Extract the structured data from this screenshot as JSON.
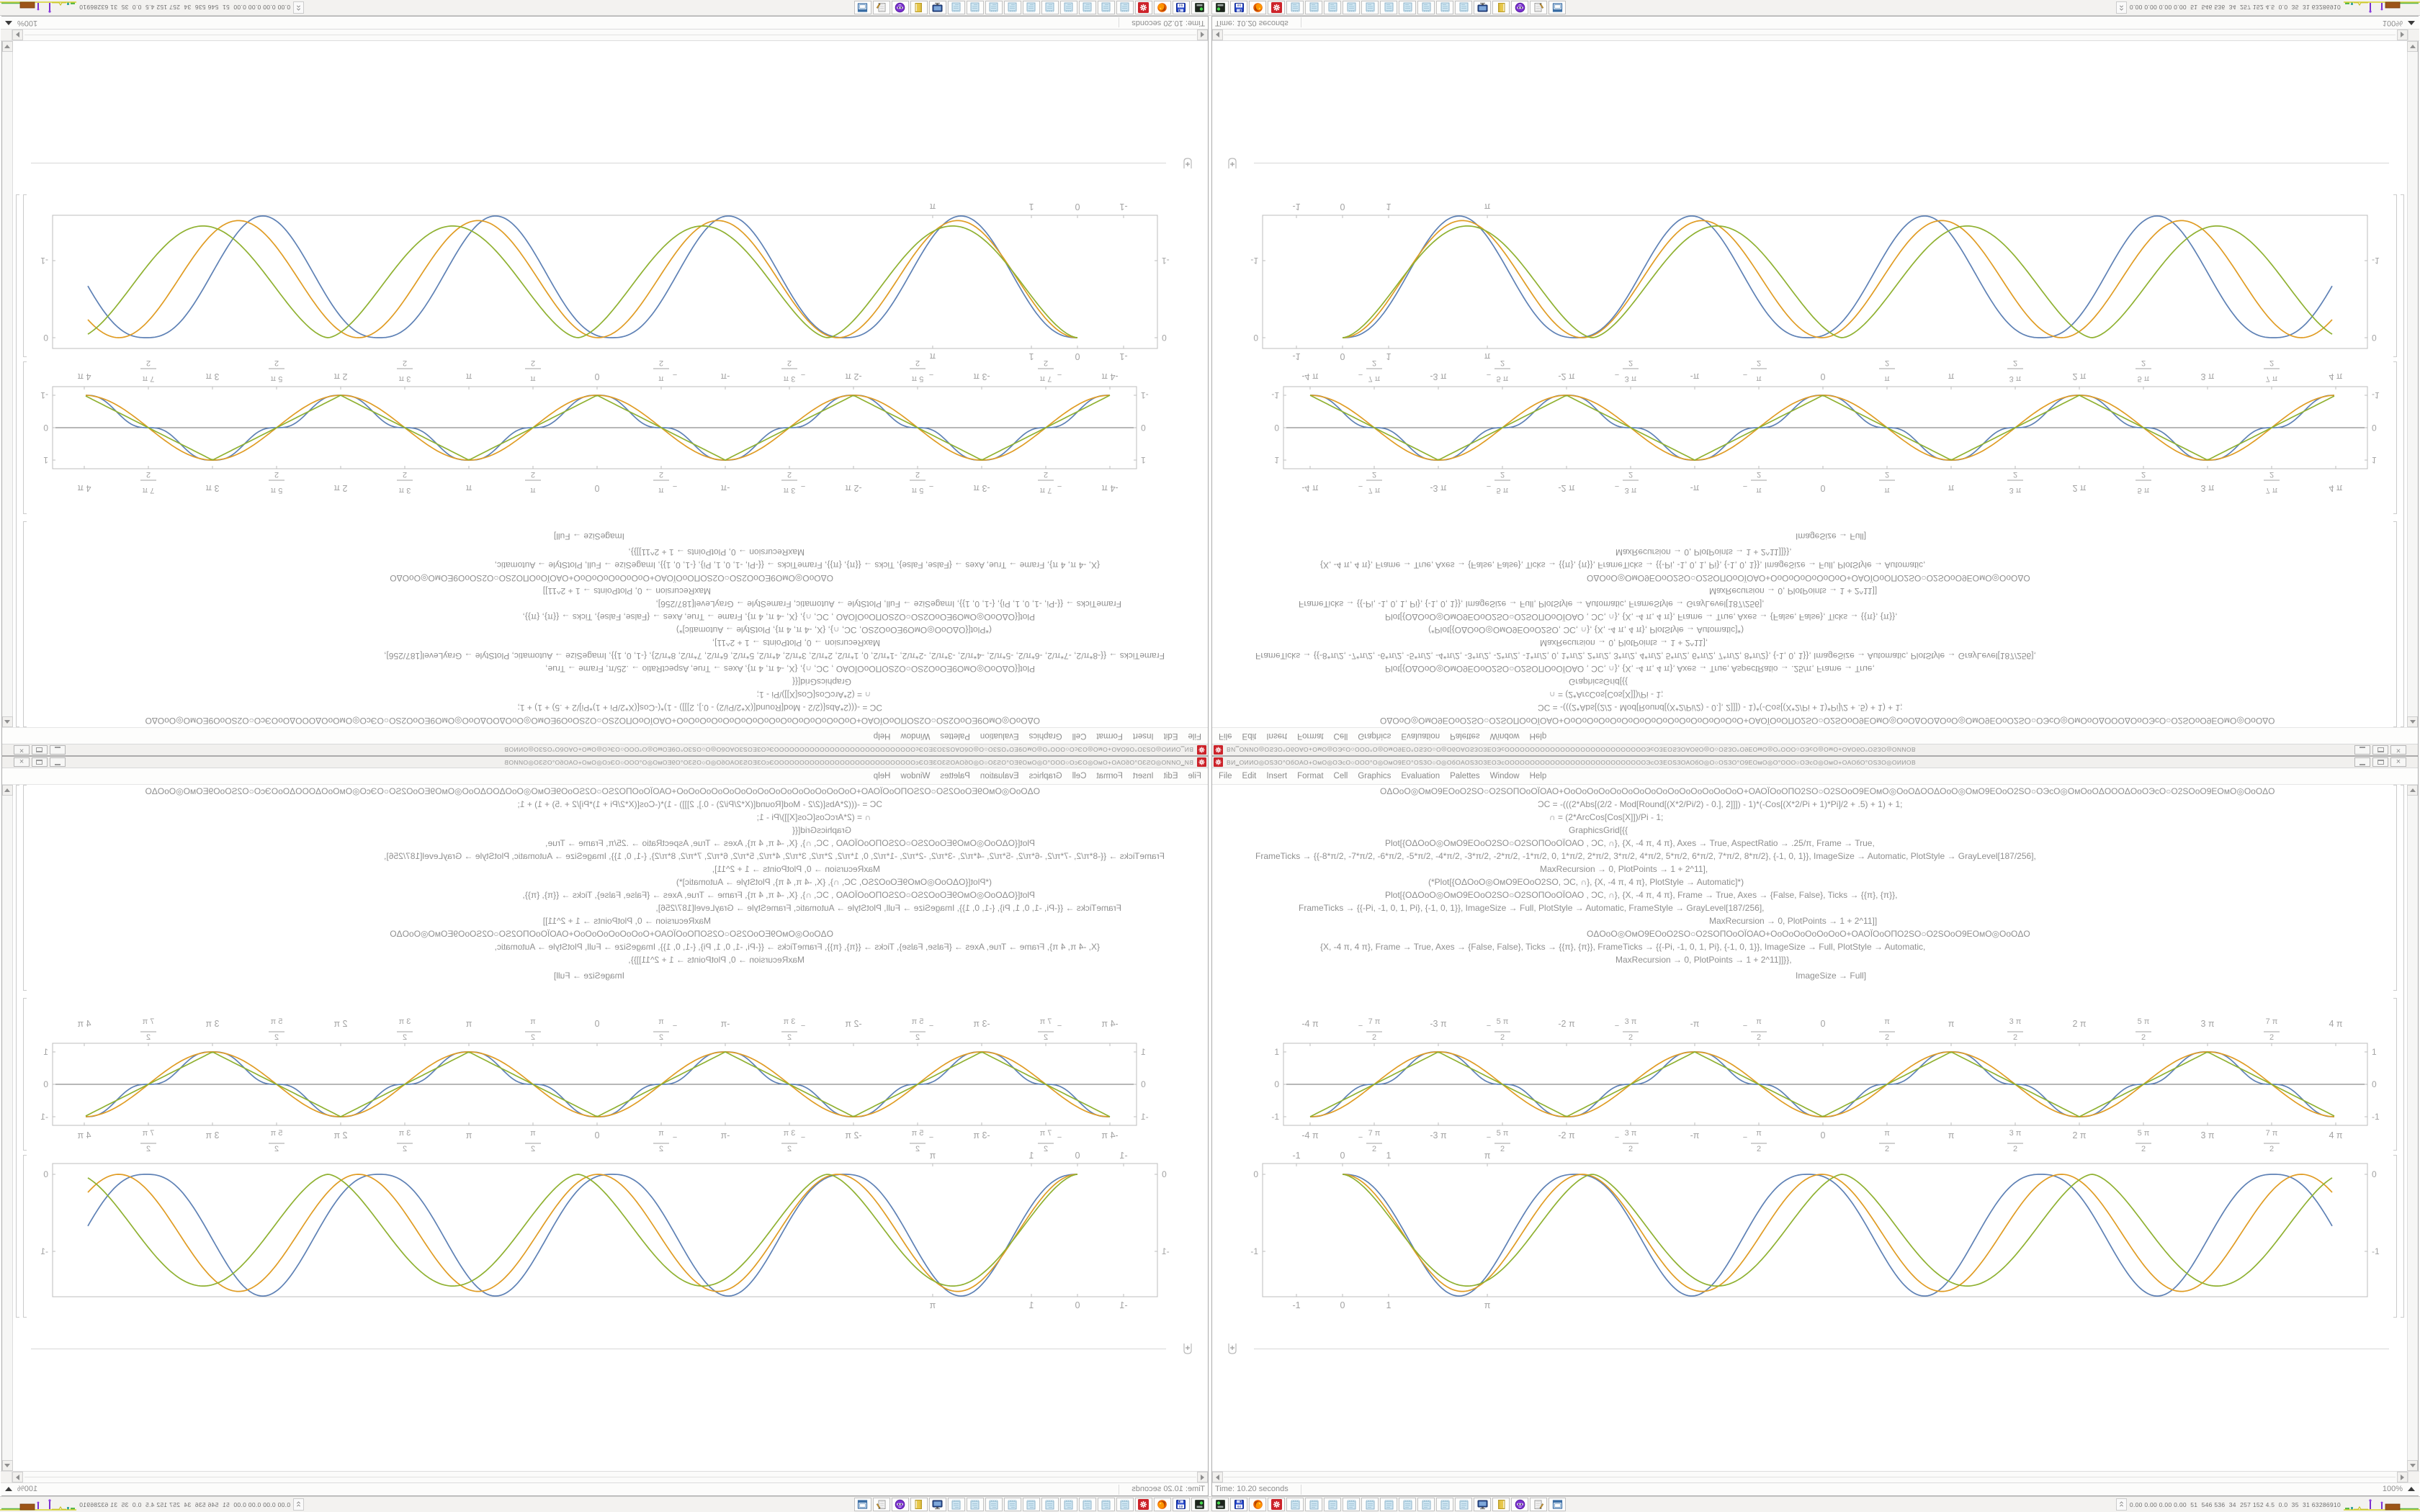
{
  "colors": {
    "curve_blue": "#5e81b5",
    "curve_orange": "#e09c24",
    "curve_green": "#8fb131",
    "frame_gray": "#bdbdbd",
    "axis_gray": "#6f6f6f",
    "tick_text": "#a2a2a2",
    "code_text": "#8f8f8f",
    "app_red": "#cc2229"
  },
  "window": {
    "title_glyphs": "ВИ‗ОИИО◎ОЅЗО°ОбОАО+ОмО◎ОЭсО○ООО°О◎ОмО9ЕО°ОЅЗО○О◎ОбОАОЅЗОЗЕОЭсООООООООООООООООООООООООООООЭсОЗЕОЅЗОАОбО◎О○ОЅЗО°О9ЕОмО◎О°ООО○ОЭсО◎ОмО+ОАОбО°ОЅЗО◎ОИИОВ",
    "menu": [
      "File",
      "Edit",
      "Insert",
      "Format",
      "Cell",
      "Graphics",
      "Evaluation",
      "Palettes",
      "Window",
      "Help"
    ],
    "controls": {
      "minimize": "minimize",
      "maximize": "maximize",
      "close": "close"
    },
    "status_time": "Time: 10.20 seconds",
    "magnification": "100%"
  },
  "code_lines": [
    {
      "x": 233,
      "y": 2,
      "t": "ОΔОоО◎ОмО9ЕОоО2ЅО○О2ЅОПОоОЇОАО+ОоОоОоОоОоОоОоОоОоОоОоОоОоОоОоО+ОАОЇОоОПО2ЅО○О2ЅОоО9ЕОмО◎ОоОΔООΔОоО◎ОмО9ЕОоО2ЅО○ОЭсО◎ОмОоОΔОООΔОоОЭсО○О2ЅОоО9ЕОмО◎ОоОΔО"
    },
    {
      "x": 452,
      "y": 20,
      "t": "ƆC = -(((2*Abs[(2/2 - Mod[Round[(X*2/Pi/2) - 0.], 2]]]) - 1)*(-Cos[(X*2/Pi + 1)*Pi]/2 + .5) + 1) + 1;"
    },
    {
      "x": 468,
      "y": 38,
      "t": "∩ = (2*ArcCos[Cos[X]])/Pi - 1;"
    },
    {
      "x": 495,
      "y": 56,
      "t": "GraphicsGrid[{{"
    },
    {
      "x": 240,
      "y": 74,
      "t": "Plot[{ОΔОоО◎ОмО9ЕОоО2ЅО○О2ЅОПОоОЇОАО , ƆC, ∩}, {X, -4 π, 4 π}, Axes → True, AspectRatio → .25/π, Frame → True,"
    },
    {
      "x": 60,
      "y": 92,
      "t": "FrameTicks → {{-8*π/2, -7*π/2, -6*π/2, -5*π/2, -4*π/2, -3*π/2, -2*π/2, -1*π/2, 0, 1*π/2, 2*π/2, 3*π/2, 4*π/2, 5*π/2, 6*π/2, 7*π/2, 8*π/2}, {-1, 0, 1}}, ImageSize → Automatic, PlotStyle → GrayLevel[187/256],"
    },
    {
      "x": 455,
      "y": 110,
      "t": "MaxRecursion → 0, PlotPoints → 1 + 2^11],"
    },
    {
      "x": 300,
      "y": 128,
      "t": "(*Plot[{ОΔОоО◎ОмО9ЕОоО2ЅО, ƆC, ∩}, {X, -4 π, 4 π}, PlotStyle → Automatic]*)"
    },
    {
      "x": 240,
      "y": 146,
      "t": "Plot[{ОΔОоО◎ОмО9ЕОоО2ЅО○О2ЅОПОоОЇОАО , ƆC, ∩}, {X, -4 π, 4 π}, Frame → True, Axes → {False, False}, Ticks → {{π}, {π}},"
    },
    {
      "x": 120,
      "y": 164,
      "t": "FrameTicks → {{-Pi, -1, 0, 1, Pi}, {-1, 0, 1}}, ImageSize → Full, PlotStyle → Automatic, FrameStyle → GrayLevel[187/256],"
    },
    {
      "x": 690,
      "y": 182,
      "t": "MaxRecursion → 0, PlotPoints → 1 + 2^11]]"
    },
    {
      "x": 520,
      "y": 200,
      "t": "ОΔОоО◎ОмО9ЕОоО2ЅО○О2ЅОПОоОЇОАО+ОоОоОоОоОоОоО+ОАОЇОоОПО2ЅО○О2ЅОоО9ЕОмО◎ОоОΔО"
    },
    {
      "x": 150,
      "y": 218,
      "t": "{X, -4 π, 4 π}, Frame → True, Axes → {False, False}, Ticks → {{π}, {π}}, FrameTicks → {{-Pi, -1, 0, 1, Pi}, {-1, 0, 1}}, ImageSize → Full, PlotStyle → Automatic,"
    },
    {
      "x": 560,
      "y": 236,
      "t": "MaxRecursion → 0, PlotPoints → 1 + 2^11]]}},"
    },
    {
      "x": 810,
      "y": 258,
      "t": "ImageSize → Full]"
    }
  ],
  "chart_data": [
    {
      "type": "line",
      "title": "",
      "xlabel": "",
      "ylabel": "",
      "x_unit": "pi_over_2_ticks",
      "xlim_pi": [
        -4.21,
        4.25
      ],
      "ylim": [
        -1.27,
        1.27
      ],
      "y_ticks": [
        {
          "v": 1,
          "label": "1"
        },
        {
          "v": 0,
          "label": "0"
        },
        {
          "v": -1,
          "label": "-1"
        }
      ],
      "x_ticks": [
        {
          "h": -8,
          "frac": false,
          "label": "-4 π"
        },
        {
          "h": -7,
          "frac": true,
          "neg": true,
          "num": "7 π",
          "den": "2"
        },
        {
          "h": -6,
          "frac": false,
          "label": "-3 π"
        },
        {
          "h": -5,
          "frac": true,
          "neg": true,
          "num": "5 π",
          "den": "2"
        },
        {
          "h": -4,
          "frac": false,
          "label": "-2 π"
        },
        {
          "h": -3,
          "frac": true,
          "neg": true,
          "num": "3 π",
          "den": "2"
        },
        {
          "h": -2,
          "frac": false,
          "label": "-π"
        },
        {
          "h": -1,
          "frac": true,
          "neg": true,
          "num": "π",
          "den": "2"
        },
        {
          "h": 0,
          "frac": false,
          "label": "0"
        },
        {
          "h": 1,
          "frac": true,
          "neg": false,
          "num": "π",
          "den": "2"
        },
        {
          "h": 2,
          "frac": false,
          "label": "π"
        },
        {
          "h": 3,
          "frac": true,
          "neg": false,
          "num": "3 π",
          "den": "2"
        },
        {
          "h": 4,
          "frac": false,
          "label": "2 π"
        },
        {
          "h": 5,
          "frac": true,
          "neg": false,
          "num": "5 π",
          "den": "2"
        },
        {
          "h": 6,
          "frac": false,
          "label": "3 π"
        },
        {
          "h": 7,
          "frac": true,
          "neg": false,
          "num": "7 π",
          "den": "2"
        },
        {
          "h": 8,
          "frac": false,
          "label": "4 π"
        }
      ],
      "frame": true,
      "axis_y0": true,
      "legend": "none",
      "series": [
        {
          "name": "smoothed-staircase ƆC",
          "color": "#5e81b5",
          "shape": "staircase"
        },
        {
          "name": "cosine -Cos[X]",
          "color": "#e09c24",
          "shape": "cos"
        },
        {
          "name": "triangle ∩",
          "color": "#8fb131",
          "shape": "triangle"
        }
      ],
      "x_range_data_pi": [
        -4,
        4
      ],
      "px": {
        "x0": 848,
        "pxPerPi": 178,
        "y0": 416,
        "pxPerUnit": 45,
        "frame": [
          99,
          359,
          1604,
          473
        ],
        "svgTop": 320,
        "svgH": 195
      }
    },
    {
      "type": "line",
      "title": "",
      "xlabel": "",
      "ylabel": "",
      "xlim": [
        -1.73,
        22.2
      ],
      "ylim": [
        -1.73,
        0.14
      ],
      "y_ticks": [
        {
          "v": 0,
          "label": "0"
        },
        {
          "v": -1,
          "label": "-1"
        }
      ],
      "x_ticks": [
        {
          "x": -1,
          "label": "-1"
        },
        {
          "x": 0,
          "label": "0"
        },
        {
          "x": 1,
          "label": "1"
        },
        {
          "x": 3.14159,
          "label": "π"
        }
      ],
      "frame": true,
      "axis_y0": false,
      "legend": "none",
      "series": [
        {
          "name": "blue",
          "color": "#5e81b5",
          "T": 5.05,
          "A": 1.58,
          "p": 1.25
        },
        {
          "name": "orange",
          "color": "#e09c24",
          "T": 5.2,
          "A": 1.52,
          "p": 1.0
        },
        {
          "name": "green",
          "color": "#8fb131",
          "T": 5.42,
          "A": 1.45,
          "p": 0.82
        }
      ],
      "x_range_data": [
        0,
        21.5
      ],
      "px": {
        "x0": 181,
        "pxPerUnit": 64,
        "y0": 541,
        "pxPerUnitY": 107,
        "frame": [
          70,
          526,
          1604,
          711
        ],
        "svgTop": 512,
        "svgH": 235
      }
    }
  ],
  "taskbar": {
    "icons": [
      "device",
      "floppy64",
      "firefox",
      "redgear",
      "notepad",
      "notepad",
      "notepad",
      "notepad",
      "notepad",
      "notepad",
      "notepad",
      "notepad",
      "notepad",
      "notepad",
      "monitor",
      "folder",
      "avatar",
      "notes",
      "windowapp"
    ],
    "tray_numbers": "0.00 0.00 0.00 0.00  51  546 536  34  257 152 4.5  0.0  35  31 63286910"
  }
}
